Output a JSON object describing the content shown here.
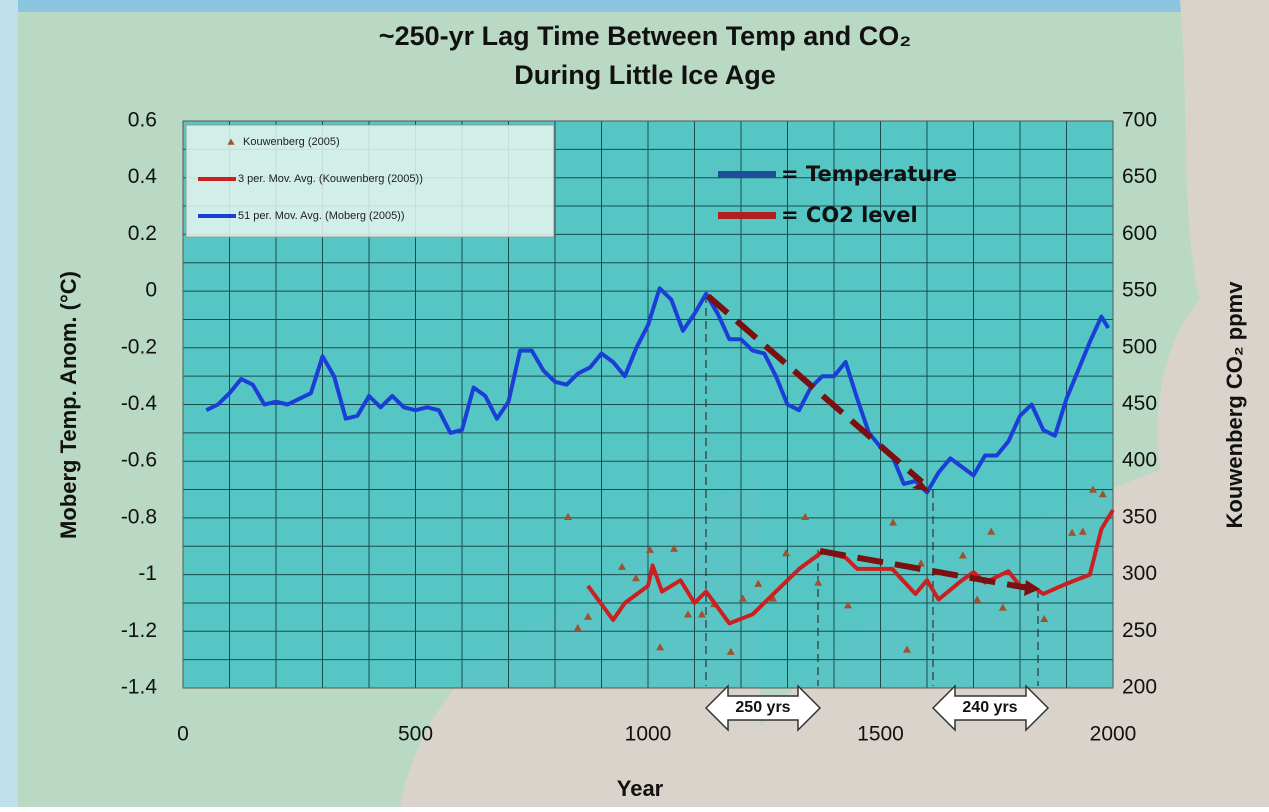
{
  "chart_data": {
    "type": "line",
    "title": "~250-yr Lag Time Between Temp and CO₂",
    "subtitle": "During Little Ice Age",
    "x_label": "Year",
    "y_label": "Moberg Temp. Anom. (°C)",
    "y2_label": "Kouwenberg CO₂  ppmv",
    "xlim": [
      0,
      2000
    ],
    "xticks": [
      0,
      500,
      1000,
      1500,
      2000
    ],
    "ylim": [
      -1.4,
      0.6
    ],
    "yticks": [
      0.6,
      0.4,
      0.2,
      0,
      -0.2,
      -0.4,
      -0.6,
      -0.8,
      -1,
      -1.2,
      -1.4
    ],
    "y2lim": [
      200,
      700
    ],
    "y2ticks": [
      700,
      650,
      600,
      550,
      500,
      450,
      400,
      350,
      300,
      250,
      200
    ],
    "grid": true,
    "xgrid": [
      0,
      100,
      200,
      300,
      400,
      500,
      600,
      700,
      800,
      900,
      1000,
      1100,
      1200,
      1300,
      1400,
      1500,
      1600,
      1700,
      1800,
      1900,
      2000
    ],
    "ygrid": [
      -1.4,
      -1.3,
      -1.2,
      -1.1,
      -1,
      -0.9,
      -0.8,
      -0.7,
      -0.6,
      -0.5,
      -0.4,
      -0.3,
      -0.2,
      -0.1,
      0,
      0.1,
      0.2,
      0.3,
      0.4,
      0.5,
      0.6
    ],
    "legend": "top-left",
    "series": [
      {
        "name": "Kouwenberg (2005)",
        "color": "#a0522d",
        "style": "markers",
        "axis": "y2",
        "x": [
          828,
          849,
          871,
          944,
          974,
          1004,
          1026,
          1056,
          1086,
          1116,
          1142,
          1178,
          1204,
          1237,
          1269,
          1297,
          1338,
          1366,
          1430,
          1527,
          1557,
          1587,
          1677,
          1708,
          1738,
          1763,
          1852,
          1912,
          1935,
          1957,
          1978
        ],
        "values": [
          351,
          253,
          263,
          307,
          297,
          322,
          236,
          323,
          265,
          265,
          274,
          232,
          279,
          292,
          279,
          319,
          351,
          293,
          273,
          346,
          234,
          310,
          317,
          278,
          338,
          271,
          261,
          337,
          338,
          375,
          371
        ]
      },
      {
        "name": "3 per. Mov. Avg. (Kouwenberg (2005))",
        "color": "#cc1f1f",
        "style": "line",
        "axis": "y2",
        "x": [
          871,
          925,
          950,
          1000,
          1010,
          1030,
          1070,
          1100,
          1125,
          1175,
          1225,
          1275,
          1325,
          1375,
          1425,
          1450,
          1525,
          1575,
          1600,
          1625,
          1675,
          1700,
          1725,
          1775,
          1800,
          1825,
          1850,
          1900,
          1950,
          1975,
          2000
        ],
        "values": [
          290,
          260,
          275,
          290,
          308,
          285,
          295,
          275,
          285,
          257,
          265,
          285,
          305,
          320,
          315,
          305,
          305,
          283,
          295,
          278,
          295,
          302,
          293,
          303,
          290,
          290,
          283,
          292,
          300,
          340,
          357
        ]
      },
      {
        "name": "51 per. Mov. Avg. (Moberg (2005))",
        "color": "#1b3fd6",
        "style": "line",
        "x": [
          50,
          75,
          100,
          125,
          150,
          175,
          200,
          225,
          250,
          275,
          300,
          325,
          350,
          375,
          400,
          425,
          450,
          475,
          500,
          525,
          550,
          575,
          600,
          625,
          650,
          675,
          700,
          725,
          750,
          775,
          800,
          825,
          850,
          875,
          900,
          925,
          950,
          975,
          1000,
          1025,
          1050,
          1075,
          1100,
          1125,
          1150,
          1175,
          1200,
          1225,
          1250,
          1275,
          1300,
          1325,
          1350,
          1375,
          1400,
          1425,
          1450,
          1475,
          1500,
          1525,
          1550,
          1575,
          1600,
          1625,
          1650,
          1675,
          1700,
          1725,
          1750,
          1775,
          1800,
          1825,
          1850,
          1875,
          1900,
          1925,
          1950,
          1975,
          1990
        ],
        "values": [
          -0.42,
          -0.4,
          -0.36,
          -0.31,
          -0.33,
          -0.4,
          -0.39,
          -0.4,
          -0.38,
          -0.36,
          -0.23,
          -0.3,
          -0.45,
          -0.44,
          -0.37,
          -0.41,
          -0.37,
          -0.41,
          -0.42,
          -0.41,
          -0.42,
          -0.5,
          -0.49,
          -0.34,
          -0.37,
          -0.45,
          -0.39,
          -0.21,
          -0.21,
          -0.28,
          -0.32,
          -0.33,
          -0.29,
          -0.27,
          -0.22,
          -0.25,
          -0.3,
          -0.2,
          -0.12,
          0.01,
          -0.03,
          -0.14,
          -0.08,
          -0.01,
          -0.08,
          -0.17,
          -0.17,
          -0.21,
          -0.22,
          -0.3,
          -0.4,
          -0.42,
          -0.34,
          -0.3,
          -0.3,
          -0.25,
          -0.38,
          -0.5,
          -0.55,
          -0.58,
          -0.68,
          -0.67,
          -0.71,
          -0.64,
          -0.59,
          -0.62,
          -0.65,
          -0.58,
          -0.58,
          -0.53,
          -0.44,
          -0.4,
          -0.49,
          -0.51,
          -0.38,
          -0.28,
          -0.18,
          -0.09,
          -0.13
        ]
      }
    ],
    "annotations": [
      "= Temperature",
      "= CO2 level",
      "250 yrs",
      "240 yrs"
    ]
  }
}
